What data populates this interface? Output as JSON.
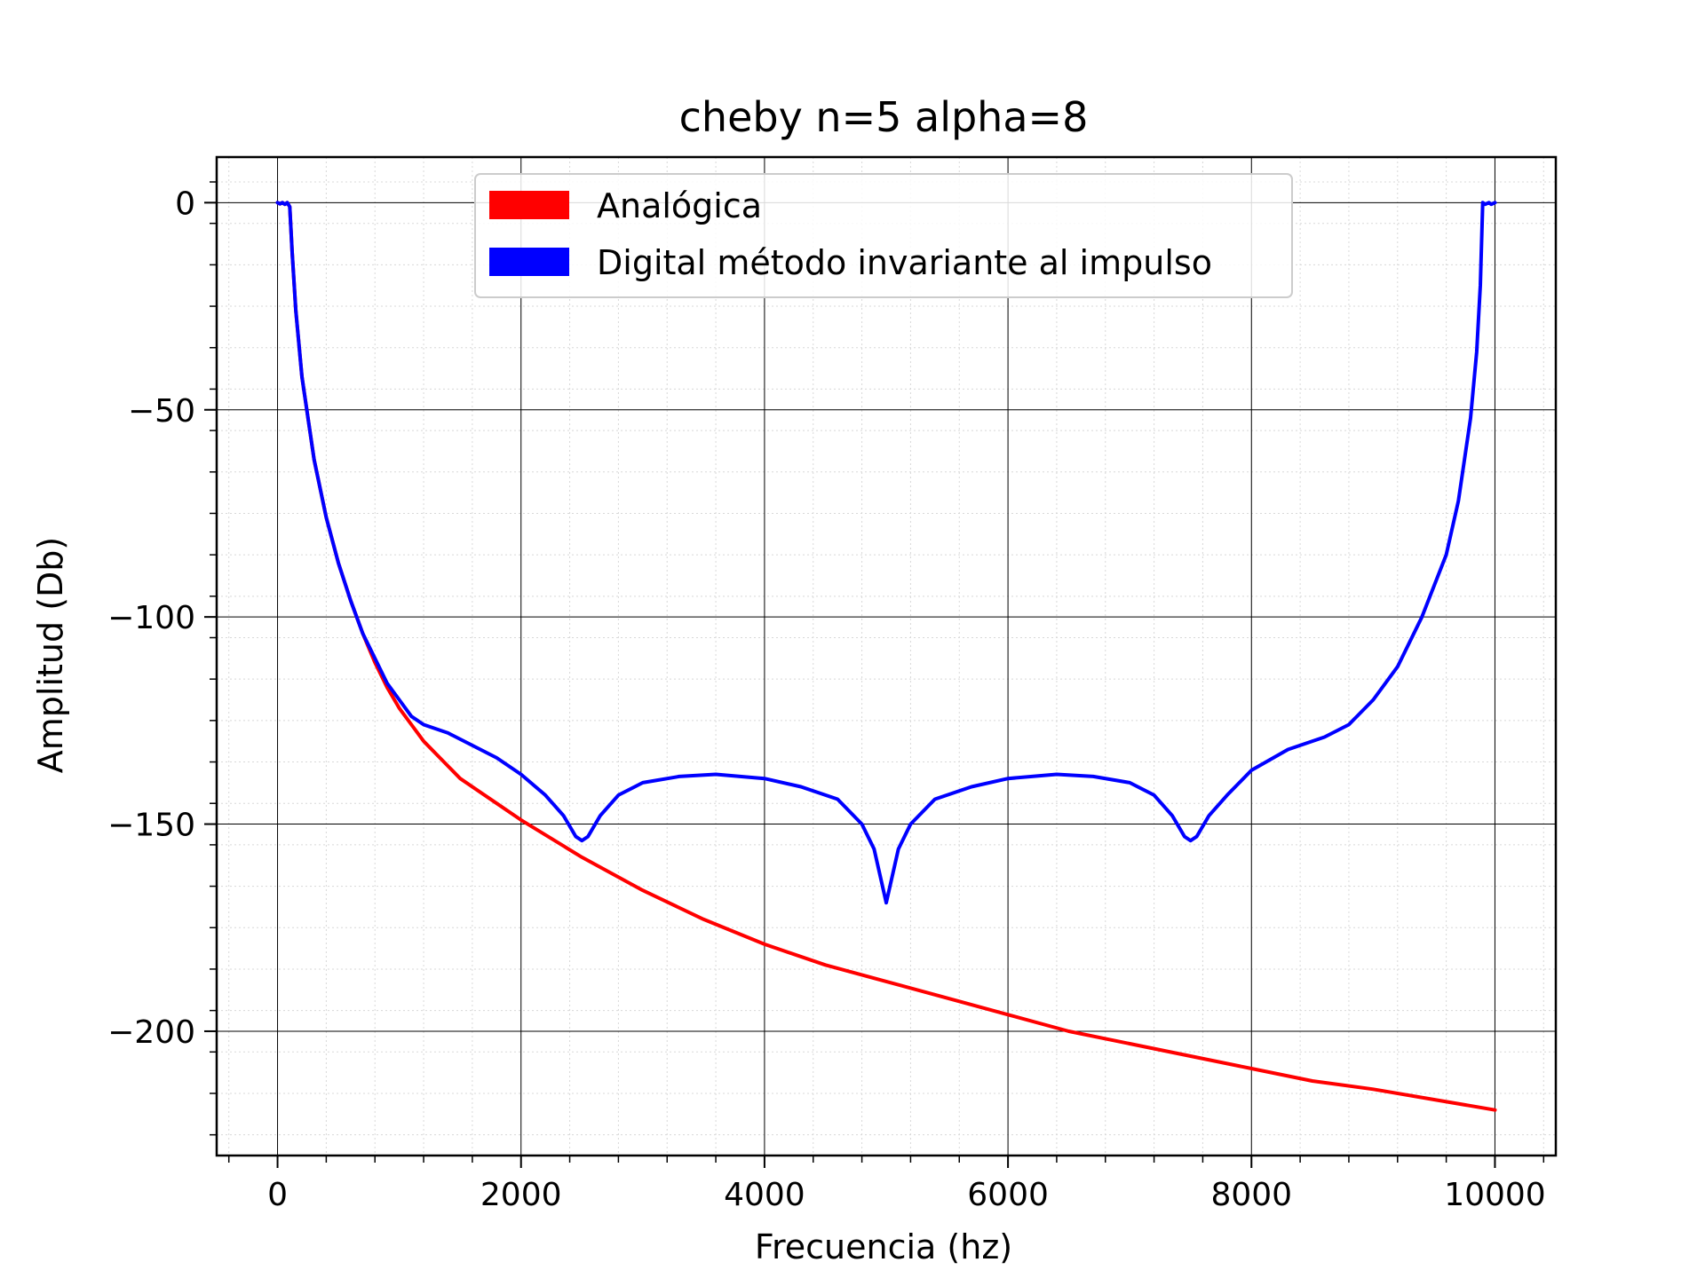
{
  "chart_data": {
    "type": "line",
    "title": "cheby n=5 alpha=8",
    "xlabel": "Frecuencia (hz)",
    "ylabel": "Amplitud (Db)",
    "xlim": [
      -500,
      10500
    ],
    "ylim": [
      -230,
      11
    ],
    "x_ticks": [
      0,
      2000,
      4000,
      6000,
      8000,
      10000
    ],
    "x_tick_labels": [
      "0",
      "2000",
      "4000",
      "6000",
      "8000",
      "10000"
    ],
    "y_ticks": [
      0,
      -50,
      -100,
      -150,
      -200
    ],
    "y_tick_labels": [
      "0",
      "−50",
      "−100",
      "−150",
      "−200"
    ],
    "grid": true,
    "minor_grid": true,
    "legend_position": "top-center",
    "series": [
      {
        "name": "Analógica",
        "color": "#ff0000",
        "points": [
          [
            0,
            0
          ],
          [
            20,
            -0.3
          ],
          [
            40,
            0
          ],
          [
            60,
            -0.4
          ],
          [
            80,
            0
          ],
          [
            100,
            -1
          ],
          [
            120,
            -12
          ],
          [
            150,
            -26
          ],
          [
            200,
            -42
          ],
          [
            300,
            -62
          ],
          [
            400,
            -76
          ],
          [
            500,
            -87
          ],
          [
            600,
            -96
          ],
          [
            700,
            -104
          ],
          [
            800,
            -111
          ],
          [
            900,
            -117
          ],
          [
            1000,
            -122
          ],
          [
            1100,
            -126
          ],
          [
            1200,
            -130
          ],
          [
            1500,
            -139
          ],
          [
            1800,
            -145
          ],
          [
            2000,
            -149
          ],
          [
            2500,
            -158
          ],
          [
            3000,
            -166
          ],
          [
            3500,
            -173
          ],
          [
            4000,
            -179
          ],
          [
            4500,
            -184
          ],
          [
            5000,
            -188
          ],
          [
            5500,
            -192
          ],
          [
            6000,
            -196
          ],
          [
            6500,
            -200
          ],
          [
            7000,
            -203
          ],
          [
            7500,
            -206
          ],
          [
            8000,
            -209
          ],
          [
            8500,
            -212
          ],
          [
            9000,
            -214
          ],
          [
            9500,
            -216.5
          ],
          [
            10000,
            -219
          ]
        ]
      },
      {
        "name": "Digital método invariante al impulso",
        "color": "#0000ff",
        "points": [
          [
            0,
            0
          ],
          [
            20,
            -0.3
          ],
          [
            40,
            0
          ],
          [
            60,
            -0.4
          ],
          [
            80,
            0
          ],
          [
            100,
            -1
          ],
          [
            120,
            -12
          ],
          [
            150,
            -26
          ],
          [
            200,
            -42
          ],
          [
            300,
            -62
          ],
          [
            400,
            -76
          ],
          [
            500,
            -87
          ],
          [
            600,
            -96
          ],
          [
            700,
            -104
          ],
          [
            800,
            -110
          ],
          [
            900,
            -116
          ],
          [
            1000,
            -120
          ],
          [
            1100,
            -124
          ],
          [
            1200,
            -126
          ],
          [
            1400,
            -128
          ],
          [
            1600,
            -131
          ],
          [
            1800,
            -134
          ],
          [
            2000,
            -138
          ],
          [
            2200,
            -143
          ],
          [
            2350,
            -148
          ],
          [
            2450,
            -153
          ],
          [
            2500,
            -154
          ],
          [
            2550,
            -153
          ],
          [
            2650,
            -148
          ],
          [
            2800,
            -143
          ],
          [
            3000,
            -140
          ],
          [
            3300,
            -138.5
          ],
          [
            3600,
            -138
          ],
          [
            4000,
            -139
          ],
          [
            4300,
            -141
          ],
          [
            4600,
            -144
          ],
          [
            4800,
            -150
          ],
          [
            4900,
            -156
          ],
          [
            5000,
            -169
          ],
          [
            5100,
            -156
          ],
          [
            5200,
            -150
          ],
          [
            5400,
            -144
          ],
          [
            5700,
            -141
          ],
          [
            6000,
            -139
          ],
          [
            6400,
            -138
          ],
          [
            6700,
            -138.5
          ],
          [
            7000,
            -140
          ],
          [
            7200,
            -143
          ],
          [
            7350,
            -148
          ],
          [
            7450,
            -153
          ],
          [
            7500,
            -154
          ],
          [
            7550,
            -153
          ],
          [
            7650,
            -148
          ],
          [
            7800,
            -143
          ],
          [
            8000,
            -137
          ],
          [
            8300,
            -132
          ],
          [
            8600,
            -129
          ],
          [
            8800,
            -126
          ],
          [
            9000,
            -120
          ],
          [
            9200,
            -112
          ],
          [
            9400,
            -100
          ],
          [
            9600,
            -85
          ],
          [
            9700,
            -72
          ],
          [
            9800,
            -52
          ],
          [
            9850,
            -36
          ],
          [
            9880,
            -20
          ],
          [
            9900,
            0
          ],
          [
            9920,
            -0.4
          ],
          [
            9950,
            0
          ],
          [
            9970,
            -0.4
          ],
          [
            10000,
            0
          ]
        ]
      }
    ]
  }
}
